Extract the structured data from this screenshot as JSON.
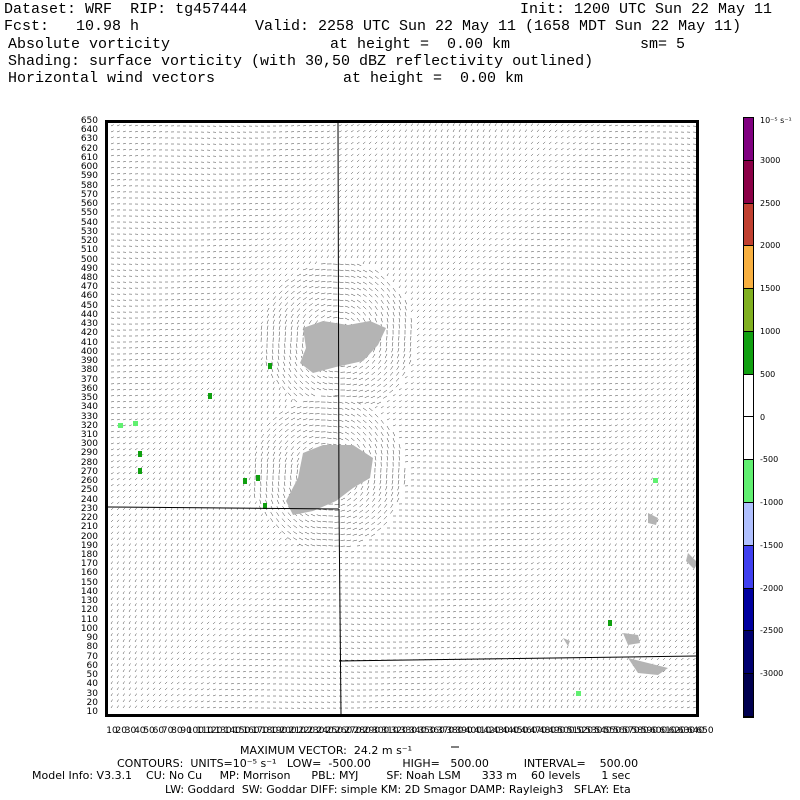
{
  "header": {
    "dataset_label": "Dataset:",
    "dataset": "WRF",
    "rip_label": "RIP:",
    "rip": "tg457444",
    "init": "Init: 1200 UTC Sun 22 May 11",
    "fcst_label": "Fcst:",
    "fcst": "10.98 h",
    "valid": "Valid: 2258 UTC Sun 22 May 11 (1658 MDT Sun 22 May 11)",
    "line3_field": "Absolute vorticity",
    "line3_height": "at height =  0.00 km",
    "line3_sm": "sm= 5",
    "line4": "Shading: surface vorticity (with 30,50 dBZ reflectivity outlined)",
    "line5_field": "Horizontal wind vectors",
    "line5_height": "at height =  0.00 km"
  },
  "axes": {
    "y_ticks": [
      "650",
      "640",
      "630",
      "620",
      "610",
      "600",
      "590",
      "580",
      "570",
      "560",
      "550",
      "540",
      "530",
      "520",
      "510",
      "500",
      "490",
      "480",
      "470",
      "460",
      "450",
      "440",
      "430",
      "420",
      "410",
      "400",
      "390",
      "380",
      "370",
      "360",
      "350",
      "340",
      "330",
      "320",
      "310",
      "300",
      "290",
      "280",
      "270",
      "260",
      "250",
      "240",
      "230",
      "220",
      "210",
      "200",
      "190",
      "180",
      "170",
      "160",
      "150",
      "140",
      "130",
      "120",
      "110",
      "100",
      "90",
      "80",
      "70",
      "60",
      "50",
      "40",
      "30",
      "20",
      "10"
    ],
    "x_ticks": [
      "10",
      "20",
      "30",
      "40",
      "50",
      "60",
      "70",
      "80",
      "90",
      "100",
      "110",
      "120",
      "130",
      "140",
      "150",
      "160",
      "170",
      "180",
      "190",
      "200",
      "210",
      "220",
      "230",
      "240",
      "250",
      "260",
      "270",
      "280",
      "290",
      "300",
      "310",
      "320",
      "330",
      "340",
      "350",
      "360",
      "370",
      "380",
      "390",
      "400",
      "410",
      "420",
      "430",
      "440",
      "450",
      "460",
      "470",
      "480",
      "490",
      "500",
      "510",
      "520",
      "530",
      "540",
      "550",
      "560",
      "570",
      "580",
      "590",
      "600",
      "610",
      "620",
      "630",
      "640",
      "650"
    ],
    "x_range": [
      10,
      650
    ],
    "y_range": [
      10,
      650
    ]
  },
  "colorbar": {
    "unit_label": "10⁻⁵ s⁻¹",
    "segments": [
      {
        "color": "#800080"
      },
      {
        "color": "#8b0046"
      },
      {
        "color": "#c04030"
      },
      {
        "color": "#f8b040"
      },
      {
        "color": "#80b020"
      },
      {
        "color": "#10a010"
      },
      {
        "color": "#ffffff"
      },
      {
        "color": "#ffffff"
      },
      {
        "color": "#60f070"
      },
      {
        "color": "#b0c0ff"
      },
      {
        "color": "#4040f0"
      },
      {
        "color": "#0000a0"
      },
      {
        "color": "#000070"
      },
      {
        "color": "#000050"
      }
    ],
    "labels": [
      {
        "text": "3000"
      },
      {
        "text": "2500"
      },
      {
        "text": "2000"
      },
      {
        "text": "1500"
      },
      {
        "text": "1000"
      },
      {
        "text": "500"
      },
      {
        "text": "0"
      },
      {
        "text": "-500"
      },
      {
        "text": "-1000"
      },
      {
        "text": "-1500"
      },
      {
        "text": "-2000"
      },
      {
        "text": "-2500"
      },
      {
        "text": "-3000"
      }
    ]
  },
  "map": {
    "vector_color": "#000000",
    "reflectivity_color": "#b4b4b4",
    "vorticity_positive_color": "#10a010",
    "vorticity_negative_color": "#60f070",
    "state_border_color": "#000000"
  },
  "footer": {
    "max_vector": "MAXIMUM VECTOR:  24.2 m s⁻¹",
    "contours": "CONTOURS:  UNITS=10⁻⁵ s⁻¹   LOW=  -500.00         HIGH=   500.00          INTERVAL=    500.00",
    "model_info": "Model Info: V3.3.1    CU: No Cu     MP: Morrison      PBL: MYJ        SF: Noah LSM      333 m    60 levels      1 sec",
    "model_info2": "LW: Goddard  SW: Goddar DIFF: simple KM: 2D Smagor DAMP: Rayleigh3   SFLAY: Eta"
  }
}
